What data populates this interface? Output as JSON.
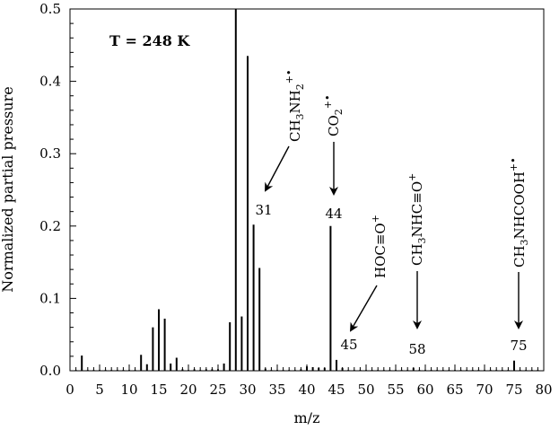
{
  "chart_data": {
    "type": "bar",
    "xlabel": "m/z",
    "ylabel": "Normalized partial pressure",
    "xlim": [
      0,
      80
    ],
    "ylim": [
      0,
      0.5
    ],
    "xticks": [
      0,
      5,
      10,
      15,
      20,
      25,
      30,
      35,
      40,
      45,
      50,
      55,
      60,
      65,
      70,
      75,
      80
    ],
    "yticks": [
      "0.0",
      "0.1",
      "0.2",
      "0.3",
      "0.4",
      "0.5"
    ],
    "condition_label": "T = 248 K",
    "x": [
      1,
      2,
      3,
      4,
      5,
      6,
      7,
      8,
      9,
      10,
      11,
      12,
      13,
      14,
      15,
      16,
      17,
      18,
      19,
      20,
      21,
      22,
      23,
      24,
      25,
      26,
      27,
      28,
      29,
      30,
      31,
      32,
      33,
      34,
      35,
      36,
      37,
      38,
      39,
      40,
      41,
      42,
      43,
      44,
      45,
      46,
      47,
      48,
      49,
      50,
      51,
      52,
      53,
      54,
      55,
      56,
      57,
      58,
      59,
      60,
      61,
      62,
      63,
      64,
      65,
      66,
      67,
      68,
      69,
      70,
      71,
      72,
      73,
      74,
      75,
      76,
      77,
      78,
      79
    ],
    "y": [
      0.001,
      0.021,
      0.001,
      0.001,
      0.001,
      0.001,
      0.001,
      0.001,
      0.001,
      0.001,
      0.001,
      0.022,
      0.009,
      0.06,
      0.085,
      0.072,
      0.01,
      0.018,
      0.002,
      0.001,
      0.002,
      0.001,
      0.002,
      0.002,
      0.002,
      0.01,
      0.067,
      0.5,
      0.075,
      0.435,
      0.202,
      0.142,
      0.003,
      0.001,
      0.001,
      0.001,
      0.001,
      0.001,
      0.002,
      0.006,
      0.005,
      0.004,
      0.004,
      0.2,
      0.015,
      0.004,
      0.001,
      0.001,
      0.001,
      0.001,
      0.001,
      0.001,
      0.001,
      0.001,
      0.001,
      0.001,
      0.001,
      0.004,
      0.001,
      0.001,
      0.001,
      0.001,
      0.001,
      0.001,
      0.001,
      0.001,
      0.001,
      0.001,
      0.001,
      0.001,
      0.001,
      0.001,
      0.001,
      0.001,
      0.014,
      0.001,
      0.001,
      0.001,
      0.001
    ],
    "annotations": [
      {
        "ion": "CH3NH2+•",
        "mz_label": "31",
        "mz": 31
      },
      {
        "ion": "CO2+•",
        "mz_label": "44",
        "mz": 44
      },
      {
        "ion": "HOC≡O+",
        "mz_label": "45",
        "mz": 45
      },
      {
        "ion": "CH3NHC≡O+",
        "mz_label": "58",
        "mz": 58
      },
      {
        "ion": "CH3NHCOOH+•",
        "mz_label": "75",
        "mz": 75
      }
    ]
  }
}
